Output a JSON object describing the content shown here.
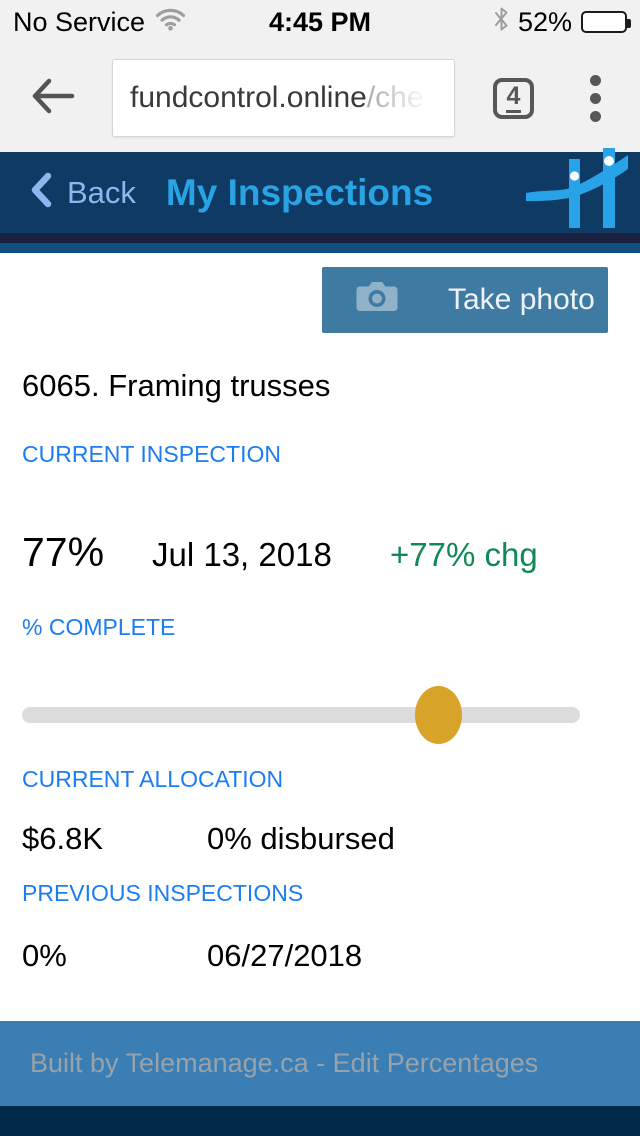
{
  "status_bar": {
    "carrier": "No Service",
    "time": "4:45 PM",
    "battery_label": "52%",
    "battery_percent": 52
  },
  "browser": {
    "url": "fundcontrol.online",
    "url_truncated": "/che",
    "tab_count": "4"
  },
  "header": {
    "back_label": "Back",
    "title": "My Inspections"
  },
  "main": {
    "take_photo_label": "Take photo",
    "item_title": "6065. Framing trusses",
    "current_inspection": {
      "label": "CURRENT INSPECTION",
      "percent": "77%",
      "date": "Jul 13, 2018",
      "change": "+77% chg"
    },
    "percent_complete": {
      "label": "% COMPLETE",
      "slider_value": 77
    },
    "current_allocation": {
      "label": "CURRENT ALLOCATION",
      "amount": "$6.8K",
      "disbursed": "0% disbursed"
    },
    "previous_inspections": {
      "label": "PREVIOUS INSPECTIONS",
      "rows": [
        {
          "percent": "0%",
          "date": "06/27/2018"
        }
      ]
    }
  },
  "footer": {
    "text": "Built by Telemanage.ca - Edit Percentages"
  },
  "colors": {
    "accent_blue": "#1c7df2",
    "title_blue": "#2aa3e4",
    "header_navy": "#0e3a63",
    "positive_green": "#0f8a55",
    "slider_gold": "#d7a429",
    "button_blue": "#3f7aa3",
    "footer_blue": "#3a7eb4",
    "bottom_navy": "#01294a"
  }
}
